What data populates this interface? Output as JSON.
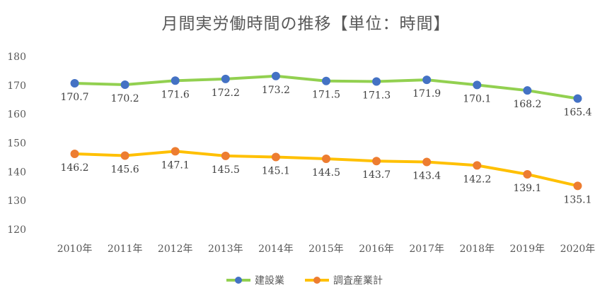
{
  "chart_data": {
    "type": "line",
    "title": "月間実労働時間の推移【単位：時間】",
    "categories": [
      "2010年",
      "2011年",
      "2012年",
      "2013年",
      "2014年",
      "2015年",
      "2016年",
      "2017年",
      "2018年",
      "2019年",
      "2020年"
    ],
    "ylim": [
      120,
      180
    ],
    "yticks": [
      120,
      130,
      140,
      150,
      160,
      170,
      180
    ],
    "grid": false,
    "legend_position": "bottom",
    "series": [
      {
        "name": "建設業",
        "color": "#92d050",
        "marker_color": "#4472c4",
        "values": [
          170.7,
          170.2,
          171.6,
          172.2,
          173.2,
          171.5,
          171.3,
          171.9,
          170.1,
          168.2,
          165.4
        ],
        "labels": [
          "170.7",
          "170.2",
          "171.6",
          "172.2",
          "173.2",
          "171.5",
          "171.3",
          "171.9",
          "170.1",
          "168.2",
          "165.4"
        ]
      },
      {
        "name": "調査産業計",
        "color": "#ffc000",
        "marker_color": "#ed7d31",
        "values": [
          146.2,
          145.6,
          147.1,
          145.5,
          145.1,
          144.5,
          143.7,
          143.4,
          142.2,
          139.1,
          135.1
        ],
        "labels": [
          "146.2",
          "145.6",
          "147.1",
          "145.5",
          "145.1",
          "144.5",
          "143.7",
          "143.4",
          "142.2",
          "139.1",
          "135.1"
        ]
      }
    ]
  }
}
